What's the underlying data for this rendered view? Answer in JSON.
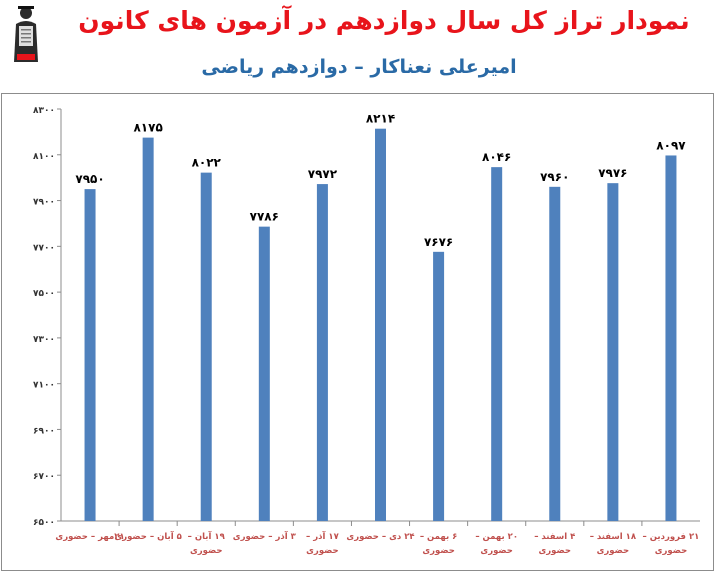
{
  "header": {
    "title": "نمودار تراز کل سال دوازدهم در آزمون های کانون",
    "subtitle": "امیرعلی نعناکار – دوازدهم ریاضی"
  },
  "logo": {
    "text_lines": [
      "کانون",
      "فرهنگی",
      "آموزش",
      "قلم‌چی"
    ]
  },
  "colors": {
    "bar": "#4f81bd",
    "title": "#e8141b",
    "subtitle": "#2a6aa6",
    "category_label": "#c0504d"
  },
  "chart_data": {
    "type": "bar",
    "title": "نمودار تراز کل سال دوازدهم در آزمون های کانون",
    "subtitle": "امیرعلی نعناکار – دوازدهم ریاضی",
    "categories": [
      [
        "۲۱مهر – حضوری"
      ],
      [
        "۵ آبان – حضوری"
      ],
      [
        "۱۹ آبان –",
        "حضوری"
      ],
      [
        "۳ آذر – حضوری"
      ],
      [
        "۱۷ آذر –",
        "حضوری"
      ],
      [
        "۲۴ دی – حضوری"
      ],
      [
        "۶ بهمن –",
        "حضوری"
      ],
      [
        "۲۰ بهمن –",
        "حضوری"
      ],
      [
        "۴ اسفند –",
        "حضوری"
      ],
      [
        "۱۸ اسفند –",
        "حضوری"
      ],
      [
        "۲۱ فروردین –",
        "حضوری"
      ]
    ],
    "values": [
      7950,
      8175,
      8022,
      7786,
      7972,
      8214,
      7676,
      8046,
      7960,
      7976,
      8097
    ],
    "value_labels": [
      "۷۹۵۰",
      "۸۱۷۵",
      "۸۰۲۲",
      "۷۷۸۶",
      "۷۹۷۲",
      "۸۲۱۴",
      "۷۶۷۶",
      "۸۰۴۶",
      "۷۹۶۰",
      "۷۹۷۶",
      "۸۰۹۷"
    ],
    "ylim": [
      6500,
      8300
    ],
    "yticks": [
      6500,
      6700,
      6900,
      7100,
      7300,
      7500,
      7700,
      7900,
      8100,
      8300
    ],
    "ytick_labels": [
      "۶۵۰۰",
      "۶۷۰۰",
      "۶۹۰۰",
      "۷۱۰۰",
      "۷۳۰۰",
      "۷۵۰۰",
      "۷۷۰۰",
      "۷۹۰۰",
      "۸۱۰۰",
      "۸۳۰۰"
    ],
    "grid": false,
    "legend": "none"
  }
}
